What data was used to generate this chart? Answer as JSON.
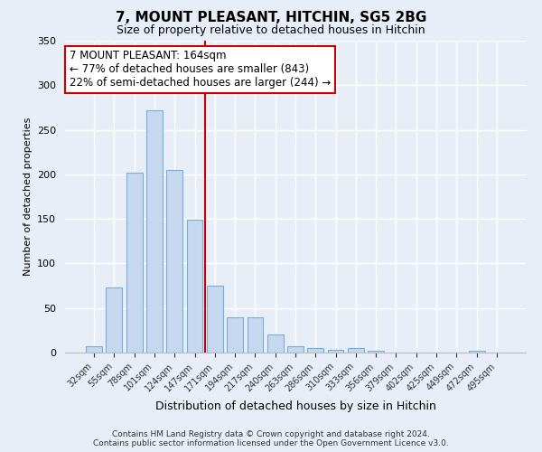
{
  "title": "7, MOUNT PLEASANT, HITCHIN, SG5 2BG",
  "subtitle": "Size of property relative to detached houses in Hitchin",
  "xlabel": "Distribution of detached houses by size in Hitchin",
  "ylabel": "Number of detached properties",
  "bar_labels": [
    "32sqm",
    "55sqm",
    "78sqm",
    "101sqm",
    "124sqm",
    "147sqm",
    "171sqm",
    "194sqm",
    "217sqm",
    "240sqm",
    "263sqm",
    "286sqm",
    "310sqm",
    "333sqm",
    "356sqm",
    "379sqm",
    "402sqm",
    "425sqm",
    "449sqm",
    "472sqm",
    "495sqm"
  ],
  "bar_values": [
    7,
    73,
    202,
    272,
    205,
    149,
    75,
    40,
    40,
    20,
    7,
    5,
    3,
    5,
    2,
    0,
    0,
    0,
    0,
    2,
    0
  ],
  "bar_color": "#c5d8f0",
  "bar_edge_color": "#7aadd4",
  "ylim": [
    0,
    350
  ],
  "yticks": [
    0,
    50,
    100,
    150,
    200,
    250,
    300,
    350
  ],
  "vline_index": 6,
  "vline_color": "#cc0000",
  "annotation_title": "7 MOUNT PLEASANT: 164sqm",
  "annotation_line1": "← 77% of detached houses are smaller (843)",
  "annotation_line2": "22% of semi-detached houses are larger (244) →",
  "annotation_box_color": "#ffffff",
  "annotation_box_edge": "#cc0000",
  "bg_color": "#e8eef8",
  "grid_color": "#ffffff",
  "footer_line1": "Contains HM Land Registry data © Crown copyright and database right 2024.",
  "footer_line2": "Contains public sector information licensed under the Open Government Licence v3.0."
}
